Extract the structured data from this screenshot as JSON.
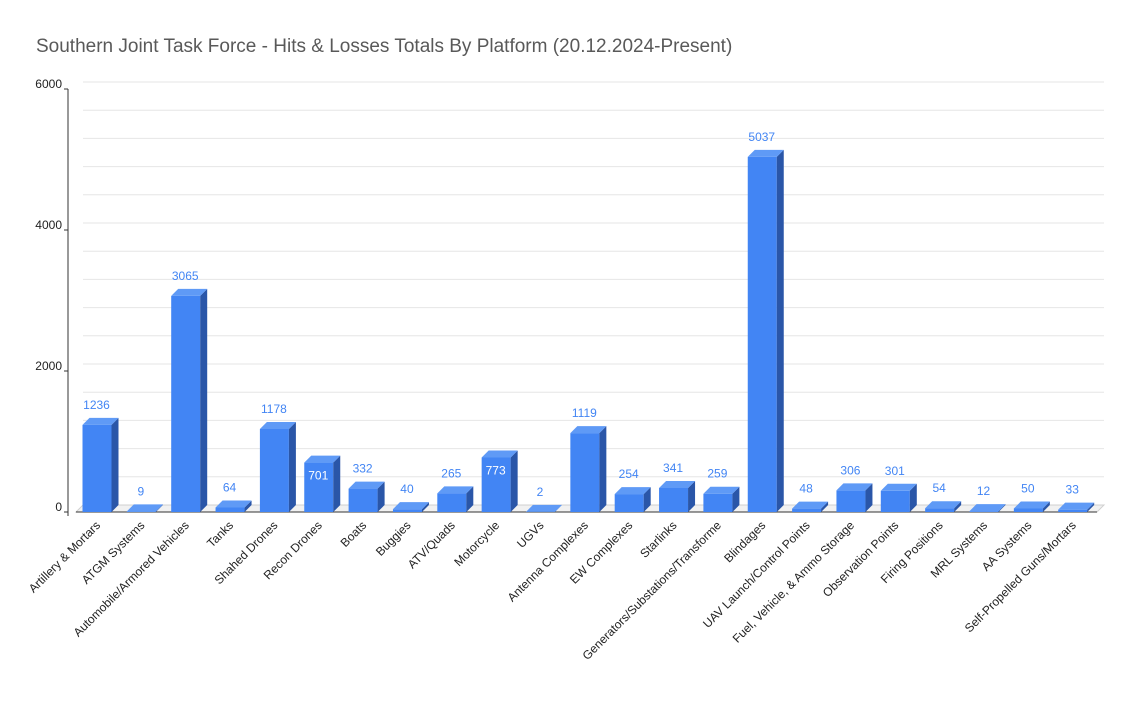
{
  "chart_data": {
    "type": "bar",
    "title": "Southern Joint Task Force - Hits & Losses Totals By Platform (20.12.2024-Present)",
    "xlabel": "",
    "ylabel": "",
    "ylim": [
      0,
      6000
    ],
    "yticks": [
      0,
      2000,
      4000,
      6000
    ],
    "grid": true,
    "legend": "none",
    "style": "3d",
    "colors": {
      "bar_front": "#4285f4",
      "bar_side": "#2a56a8",
      "bar_top": "#5f9af6",
      "value_label": "#4285f4",
      "grid": "#dddddd"
    },
    "categories": [
      "Artillery & Mortars",
      "ATGM Systems",
      "Automobile/Armored Vehicles",
      "Tanks",
      "Shahed Drones",
      "Recon Drones",
      "Boats",
      "Buggies",
      "ATV/Quads",
      "Motorcycle",
      "UGVs",
      "Antenna Complexes",
      "EW Complexes",
      "Starlinks",
      "Generators/Substations/Transforme",
      "Blindages",
      "UAV Launch/Control Points",
      "Fuel, Vehicle, & Ammo Storage",
      "Observation Points",
      "Firing Positions",
      "MRL Systems",
      "AA Systems",
      "Self-Propelled Guns/Mortars"
    ],
    "values": [
      1236,
      9,
      3065,
      64,
      1178,
      701,
      332,
      40,
      265,
      773,
      2,
      1119,
      254,
      341,
      259,
      5037,
      48,
      306,
      301,
      54,
      12,
      50,
      33
    ]
  }
}
